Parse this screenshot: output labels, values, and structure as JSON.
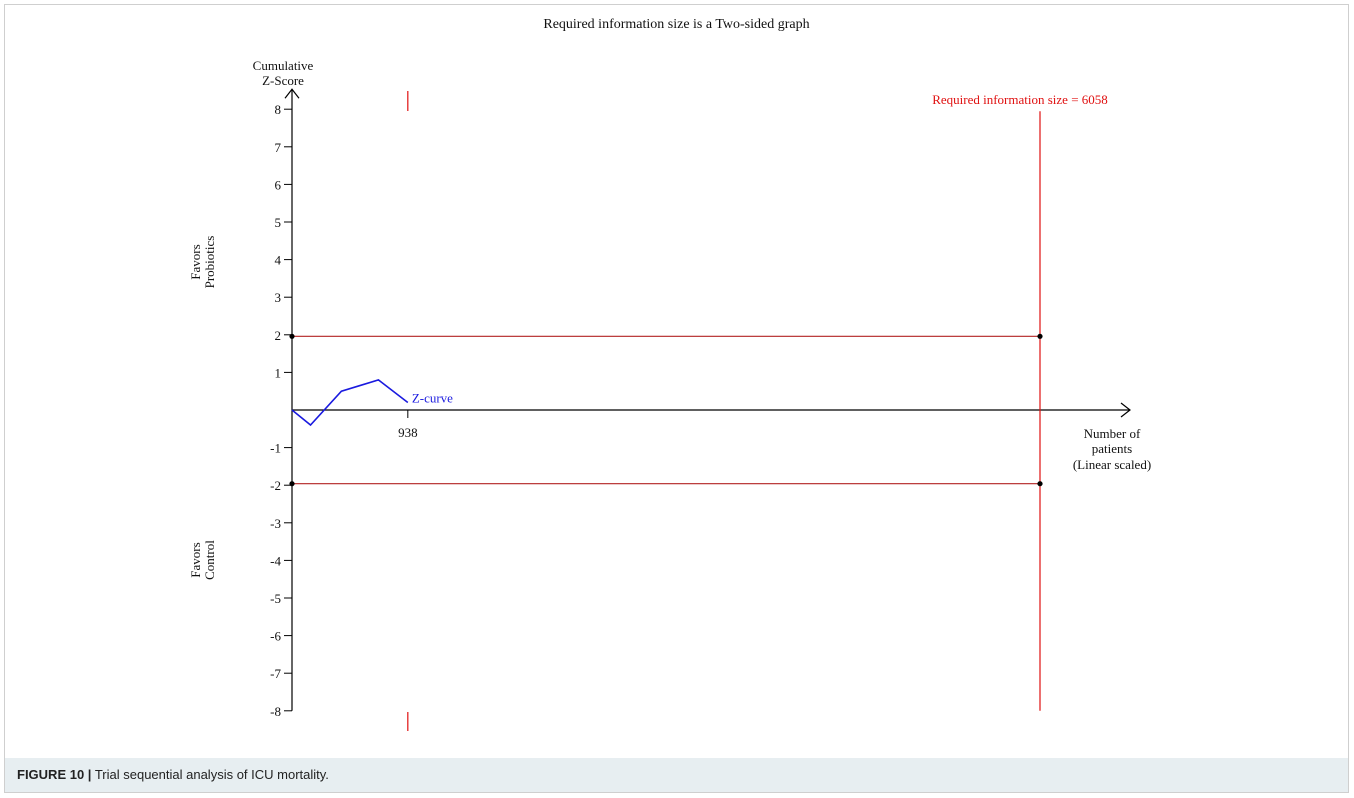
{
  "figure": {
    "caption_label": "FIGURE 10 |",
    "caption_text": "Trial sequential analysis of ICU mortality."
  },
  "chart_data": {
    "type": "line",
    "title": "Required information size is a Two-sided graph",
    "ylabel_line1": "Cumulative",
    "ylabel_line2": "Z-Score",
    "xlabel_line1": "Number of",
    "xlabel_line2": "patients",
    "xlabel_line3": "(Linear scaled)",
    "ylim": [
      -8,
      8
    ],
    "xlim": [
      0,
      6500
    ],
    "y_ticks": [
      8,
      7,
      6,
      5,
      4,
      3,
      2,
      1,
      -1,
      -2,
      -3,
      -4,
      -5,
      -6,
      -7,
      -8
    ],
    "x_tick_labels": [
      {
        "value": 938,
        "label": "938"
      }
    ],
    "favor_top_line1": "Favors",
    "favor_top_line2": "Probiotics",
    "favor_bottom_line1": "Favors",
    "favor_bottom_line2": "Control",
    "required_information_size": 6058,
    "ris_label": "Required information size = 6058",
    "boundary_z": [
      1.96,
      -1.96
    ],
    "z_curve": {
      "name": "Z-curve",
      "x": [
        0,
        150,
        400,
        550,
        700,
        938
      ],
      "y": [
        0,
        -0.4,
        0.5,
        0.65,
        0.8,
        0.2
      ]
    },
    "monitoring_marks_x": 938,
    "colors": {
      "axis": "#000000",
      "boundary": "#b22222",
      "ris": "#e01010",
      "zcurve": "#1a1adf",
      "marks": "#e01010"
    }
  }
}
